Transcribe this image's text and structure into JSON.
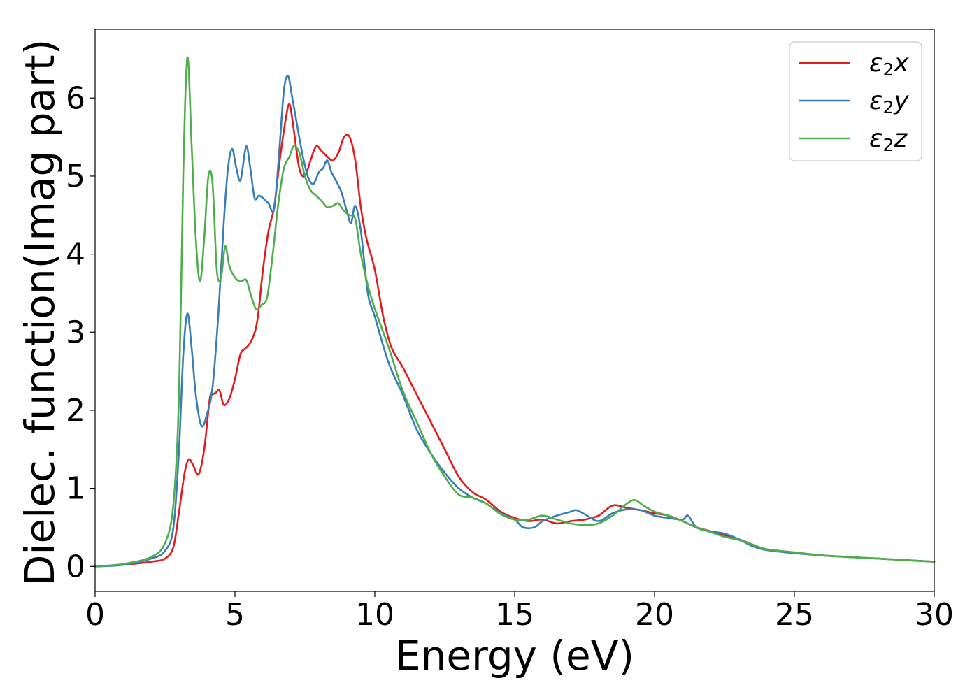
{
  "chart_data": {
    "type": "line",
    "title": "",
    "xlabel": "Energy (eV)",
    "ylabel": "Dielec. function(Imag part)",
    "xlim": [
      0,
      30
    ],
    "ylim": [
      -0.32,
      6.88
    ],
    "xticks": [
      0,
      5,
      10,
      15,
      20,
      25,
      30
    ],
    "yticks": [
      0,
      1,
      2,
      3,
      4,
      5,
      6
    ],
    "grid": false,
    "legend_position": "top-right",
    "series": [
      {
        "name": "ε₂x",
        "legend": {
          "base": "ε",
          "sub": "2",
          "axis": "x"
        },
        "color": "#e41a1c",
        "x": [
          0,
          1,
          2,
          2.5,
          2.8,
          3.0,
          3.2,
          3.35,
          3.5,
          3.7,
          3.9,
          4.1,
          4.2,
          4.3,
          4.45,
          4.6,
          4.8,
          5.0,
          5.2,
          5.4,
          5.6,
          5.8,
          6.0,
          6.2,
          6.4,
          6.6,
          6.8,
          6.95,
          7.1,
          7.3,
          7.5,
          7.7,
          7.9,
          8.1,
          8.3,
          8.5,
          8.7,
          8.9,
          9.1,
          9.3,
          9.5,
          9.7,
          10.0,
          10.3,
          10.6,
          11.0,
          11.5,
          12.0,
          12.5,
          13.0,
          13.5,
          14.0,
          14.5,
          15.0,
          15.5,
          16.0,
          16.5,
          17.0,
          17.5,
          18.0,
          18.5,
          19.0,
          19.5,
          20.0,
          20.5,
          21.0,
          21.5,
          22.0,
          22.5,
          23.0,
          23.5,
          24.0,
          25.0,
          26.0,
          27.0,
          28.0,
          29.0,
          30.0
        ],
        "values": [
          0.0,
          0.02,
          0.06,
          0.1,
          0.25,
          0.7,
          1.2,
          1.37,
          1.3,
          1.18,
          1.5,
          2.15,
          2.2,
          2.22,
          2.25,
          2.07,
          2.15,
          2.4,
          2.72,
          2.8,
          2.9,
          3.15,
          3.8,
          4.3,
          4.6,
          5.2,
          5.7,
          5.92,
          5.6,
          5.1,
          5.0,
          5.2,
          5.38,
          5.32,
          5.25,
          5.2,
          5.3,
          5.5,
          5.5,
          5.2,
          4.6,
          4.2,
          3.8,
          3.2,
          2.8,
          2.55,
          2.2,
          1.85,
          1.5,
          1.15,
          0.95,
          0.85,
          0.7,
          0.62,
          0.58,
          0.6,
          0.55,
          0.58,
          0.6,
          0.65,
          0.78,
          0.75,
          0.72,
          0.68,
          0.65,
          0.58,
          0.5,
          0.45,
          0.4,
          0.35,
          0.28,
          0.22,
          0.18,
          0.14,
          0.12,
          0.1,
          0.08,
          0.06
        ]
      },
      {
        "name": "ε₂y",
        "legend": {
          "base": "ε",
          "sub": "2",
          "axis": "y"
        },
        "color": "#377eb8",
        "x": [
          0,
          1,
          2,
          2.5,
          2.8,
          3.0,
          3.15,
          3.3,
          3.45,
          3.6,
          3.8,
          4.0,
          4.2,
          4.4,
          4.6,
          4.75,
          4.9,
          5.05,
          5.2,
          5.4,
          5.55,
          5.7,
          5.85,
          6.0,
          6.2,
          6.4,
          6.6,
          6.75,
          6.9,
          7.05,
          7.2,
          7.4,
          7.6,
          7.8,
          8.0,
          8.15,
          8.3,
          8.45,
          8.6,
          8.8,
          9.0,
          9.15,
          9.3,
          9.5,
          9.75,
          10.0,
          10.5,
          11.0,
          11.5,
          12.0,
          12.5,
          13.0,
          13.5,
          14.0,
          14.5,
          15.0,
          15.3,
          15.7,
          16.0,
          16.5,
          17.0,
          17.2,
          17.5,
          18.0,
          18.5,
          19.0,
          19.5,
          20.0,
          20.5,
          21.0,
          21.2,
          21.5,
          22.0,
          22.5,
          23.0,
          23.5,
          24.0,
          25.0,
          26.0,
          27.0,
          28.0,
          29.0,
          30.0
        ],
        "values": [
          0.0,
          0.02,
          0.1,
          0.2,
          0.5,
          1.5,
          2.7,
          3.24,
          2.8,
          2.2,
          1.8,
          1.95,
          2.3,
          3.2,
          4.4,
          5.1,
          5.35,
          5.1,
          4.95,
          5.38,
          5.1,
          4.72,
          4.75,
          4.72,
          4.65,
          4.58,
          5.4,
          6.1,
          6.28,
          6.0,
          5.7,
          5.3,
          5.0,
          4.9,
          5.05,
          5.1,
          5.2,
          5.05,
          4.95,
          4.8,
          4.55,
          4.4,
          4.62,
          4.3,
          3.5,
          3.2,
          2.6,
          2.2,
          1.75,
          1.45,
          1.2,
          1.0,
          0.88,
          0.8,
          0.68,
          0.6,
          0.5,
          0.5,
          0.58,
          0.65,
          0.7,
          0.72,
          0.67,
          0.58,
          0.68,
          0.73,
          0.72,
          0.65,
          0.62,
          0.6,
          0.65,
          0.5,
          0.45,
          0.42,
          0.35,
          0.26,
          0.21,
          0.17,
          0.14,
          0.12,
          0.1,
          0.08,
          0.06
        ]
      },
      {
        "name": "ε₂z",
        "legend": {
          "base": "ε",
          "sub": "2",
          "axis": "z"
        },
        "color": "#4daf4a",
        "x": [
          0,
          1,
          2,
          2.5,
          2.8,
          3.0,
          3.15,
          3.3,
          3.45,
          3.6,
          3.75,
          3.9,
          4.05,
          4.2,
          4.35,
          4.5,
          4.65,
          4.8,
          5.0,
          5.2,
          5.4,
          5.55,
          5.75,
          5.95,
          6.15,
          6.35,
          6.55,
          6.75,
          6.95,
          7.1,
          7.3,
          7.5,
          7.7,
          7.9,
          8.1,
          8.3,
          8.5,
          8.7,
          8.9,
          9.1,
          9.3,
          9.5,
          9.75,
          10.0,
          10.5,
          11.0,
          11.5,
          12.0,
          12.5,
          13.0,
          13.5,
          14.0,
          14.5,
          15.0,
          15.5,
          16.0,
          16.5,
          17.0,
          17.5,
          18.0,
          18.5,
          19.0,
          19.3,
          19.6,
          20.0,
          20.5,
          21.0,
          21.5,
          22.0,
          22.5,
          23.0,
          23.5,
          24.0,
          25.0,
          26.0,
          27.0,
          28.0,
          29.0,
          30.0
        ],
        "values": [
          0.0,
          0.03,
          0.12,
          0.3,
          0.8,
          2.2,
          5.0,
          6.52,
          5.4,
          4.2,
          3.65,
          4.2,
          5.0,
          4.9,
          3.8,
          3.7,
          4.1,
          3.85,
          3.7,
          3.65,
          3.67,
          3.5,
          3.3,
          3.35,
          3.45,
          4.0,
          4.65,
          5.1,
          5.25,
          5.38,
          5.3,
          5.0,
          4.82,
          4.75,
          4.68,
          4.6,
          4.62,
          4.65,
          4.55,
          4.5,
          4.45,
          4.0,
          3.6,
          3.3,
          2.8,
          2.25,
          1.85,
          1.45,
          1.15,
          0.92,
          0.88,
          0.8,
          0.67,
          0.6,
          0.6,
          0.65,
          0.6,
          0.55,
          0.53,
          0.55,
          0.65,
          0.8,
          0.85,
          0.78,
          0.7,
          0.65,
          0.58,
          0.5,
          0.44,
          0.38,
          0.34,
          0.28,
          0.22,
          0.18,
          0.14,
          0.12,
          0.1,
          0.08,
          0.06
        ]
      }
    ]
  }
}
